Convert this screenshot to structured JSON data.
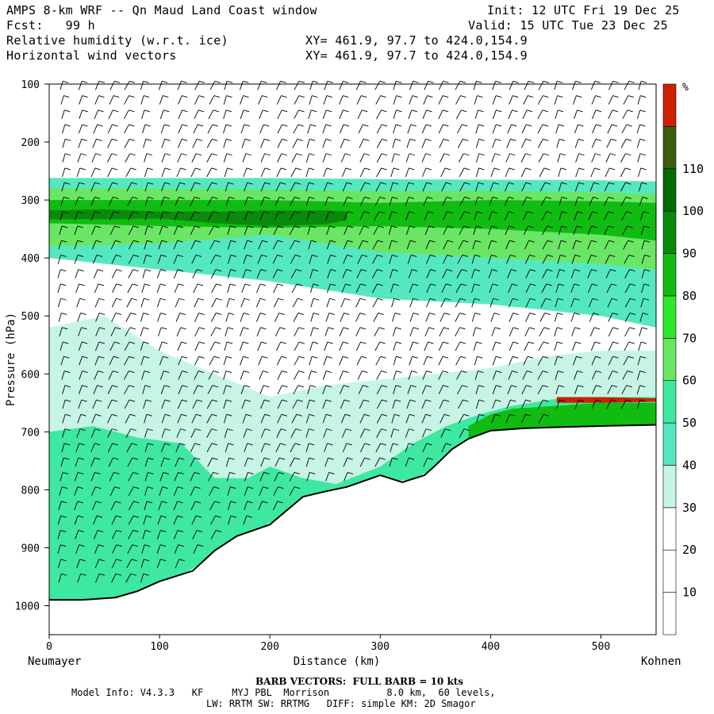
{
  "header": {
    "line1_left": "AMPS 8-km WRF -- Qn Maud Land Coast window",
    "line1_right": "Init: 12 UTC Fri 19 Dec 25",
    "line2_left": "Fcst:   99 h",
    "line2_right": "Valid: 15 UTC Tue 23 Dec 25",
    "line3_left": "Relative humidity (w.r.t. ice)",
    "line3_right": "XY= 461.9, 97.7 to 424.0,154.9",
    "line4_left": "Horizontal wind vectors",
    "line4_right": "XY= 461.9, 97.7 to 424.0,154.9"
  },
  "footer": {
    "barb_note": "BARB VECTORS:  FULL BARB = 10 kts",
    "model_info": "Model Info: V4.3.3   KF     MYJ PBL  Morrison          8.0 km,  60 levels,",
    "physics": "LW: RRTM SW: RRTMG   DIFF: simple KM: 2D Smagor"
  },
  "chart_data": {
    "type": "cross-section",
    "xlabel": "Distance (km)",
    "ylabel": "Pressure (hPa)",
    "x_ticks": [
      "0",
      "100",
      "200",
      "300",
      "400",
      "500"
    ],
    "y_ticks": [
      "100",
      "200",
      "300",
      "400",
      "500",
      "600",
      "700",
      "800",
      "900",
      "1000"
    ],
    "xlim": [
      0,
      550
    ],
    "ylim": [
      100,
      1050
    ],
    "start_label": "Neumayer",
    "end_label": "Kohnen",
    "colorbar": {
      "unit": "%",
      "labels": [
        "10",
        "20",
        "30",
        "40",
        "50",
        "60",
        "70",
        "80",
        "90",
        "100",
        "110"
      ],
      "colors": [
        "#ffffff",
        "#ffffff",
        "#ffffff",
        "#c6f5e6",
        "#55e8c0",
        "#3ee8a0",
        "#6ae664",
        "#2ee82c",
        "#10bc10",
        "#0a8a0a",
        "#066a06",
        "#3c5c0c",
        "#cc2200"
      ]
    },
    "terrain": [
      [
        0,
        990
      ],
      [
        30,
        990
      ],
      [
        60,
        986
      ],
      [
        80,
        975
      ],
      [
        100,
        958
      ],
      [
        130,
        940
      ],
      [
        150,
        905
      ],
      [
        170,
        880
      ],
      [
        200,
        860
      ],
      [
        230,
        812
      ],
      [
        250,
        803
      ],
      [
        270,
        795
      ],
      [
        300,
        775
      ],
      [
        320,
        787
      ],
      [
        340,
        775
      ],
      [
        350,
        758
      ],
      [
        365,
        730
      ],
      [
        380,
        712
      ],
      [
        400,
        698
      ],
      [
        430,
        694
      ],
      [
        460,
        692
      ],
      [
        500,
        690
      ],
      [
        550,
        688
      ]
    ],
    "rh_layers": [
      {
        "name": "upper-moist-edge",
        "percent": 40,
        "top": [
          [
            0,
            262
          ],
          [
            100,
            262
          ],
          [
            200,
            262
          ],
          [
            300,
            264
          ],
          [
            400,
            265
          ],
          [
            500,
            266
          ],
          [
            550,
            268
          ]
        ],
        "bottom": [
          [
            0,
            400
          ],
          [
            100,
            420
          ],
          [
            200,
            440
          ],
          [
            300,
            470
          ],
          [
            400,
            480
          ],
          [
            500,
            500
          ],
          [
            550,
            520
          ]
        ]
      },
      {
        "name": "upper-band-60",
        "percent": 60,
        "top": [
          [
            0,
            280
          ],
          [
            100,
            280
          ],
          [
            200,
            282
          ],
          [
            300,
            285
          ],
          [
            400,
            284
          ],
          [
            500,
            287
          ],
          [
            550,
            290
          ]
        ],
        "bottom": [
          [
            0,
            380
          ],
          [
            100,
            375
          ],
          [
            200,
            360
          ],
          [
            300,
            390
          ],
          [
            400,
            400
          ],
          [
            500,
            410
          ],
          [
            550,
            420
          ]
        ]
      },
      {
        "name": "upper-band-80",
        "percent": 80,
        "top": [
          [
            0,
            300
          ],
          [
            100,
            300
          ],
          [
            200,
            300
          ],
          [
            300,
            305
          ],
          [
            400,
            300
          ],
          [
            500,
            302
          ],
          [
            550,
            305
          ]
        ],
        "bottom": [
          [
            0,
            340
          ],
          [
            100,
            345
          ],
          [
            200,
            348
          ],
          [
            300,
            345
          ],
          [
            400,
            350
          ],
          [
            500,
            360
          ],
          [
            550,
            370
          ]
        ]
      },
      {
        "name": "upper-core-90",
        "percent": 90,
        "top": [
          [
            0,
            318
          ],
          [
            50,
            316
          ],
          [
            100,
            320
          ],
          [
            150,
            320
          ],
          [
            200,
            318
          ],
          [
            250,
            318
          ],
          [
            270,
            320
          ]
        ],
        "bottom": [
          [
            0,
            333
          ],
          [
            50,
            333
          ],
          [
            100,
            332
          ],
          [
            150,
            340
          ],
          [
            200,
            345
          ],
          [
            250,
            342
          ],
          [
            270,
            335
          ]
        ]
      },
      {
        "name": "lower-moist-30",
        "percent": 30,
        "top": [
          [
            0,
            520
          ],
          [
            50,
            500
          ],
          [
            100,
            560
          ],
          [
            150,
            600
          ],
          [
            200,
            640
          ],
          [
            250,
            620
          ],
          [
            300,
            610
          ],
          [
            350,
            600
          ],
          [
            400,
            590
          ],
          [
            450,
            570
          ],
          [
            500,
            560
          ],
          [
            550,
            560
          ]
        ],
        "bottom": "terrain"
      },
      {
        "name": "lower-moist-50",
        "percent": 50,
        "top": [
          [
            0,
            700
          ],
          [
            40,
            690
          ],
          [
            80,
            710
          ],
          [
            120,
            720
          ],
          [
            150,
            780
          ],
          [
            180,
            780
          ],
          [
            200,
            760
          ],
          [
            230,
            780
          ],
          [
            260,
            790
          ],
          [
            300,
            760
          ],
          [
            330,
            720
          ],
          [
            360,
            690
          ],
          [
            390,
            670
          ],
          [
            420,
            655
          ],
          [
            470,
            640
          ],
          [
            550,
            640
          ]
        ],
        "bottom": "terrain"
      },
      {
        "name": "surface-band-80",
        "percent": 80,
        "top": [
          [
            380,
            690
          ],
          [
            400,
            670
          ],
          [
            420,
            660
          ],
          [
            460,
            655
          ],
          [
            500,
            650
          ],
          [
            550,
            650
          ]
        ],
        "bottom": "terrain"
      },
      {
        "name": "surface-core-110",
        "percent": 110,
        "top": [
          [
            460,
            640
          ],
          [
            500,
            640
          ],
          [
            550,
            642
          ]
        ],
        "bottom": [
          [
            460,
            650
          ],
          [
            500,
            650
          ],
          [
            550,
            648
          ]
        ]
      }
    ],
    "wind_barb_columns_km": [
      10,
      25,
      40,
      55,
      70,
      85,
      100,
      115,
      130,
      145,
      160,
      175,
      190,
      205,
      220,
      235,
      250,
      265,
      280,
      295,
      310,
      325,
      340,
      355,
      370,
      385,
      400,
      415,
      430,
      445,
      460,
      475,
      490,
      505,
      520,
      535
    ]
  }
}
